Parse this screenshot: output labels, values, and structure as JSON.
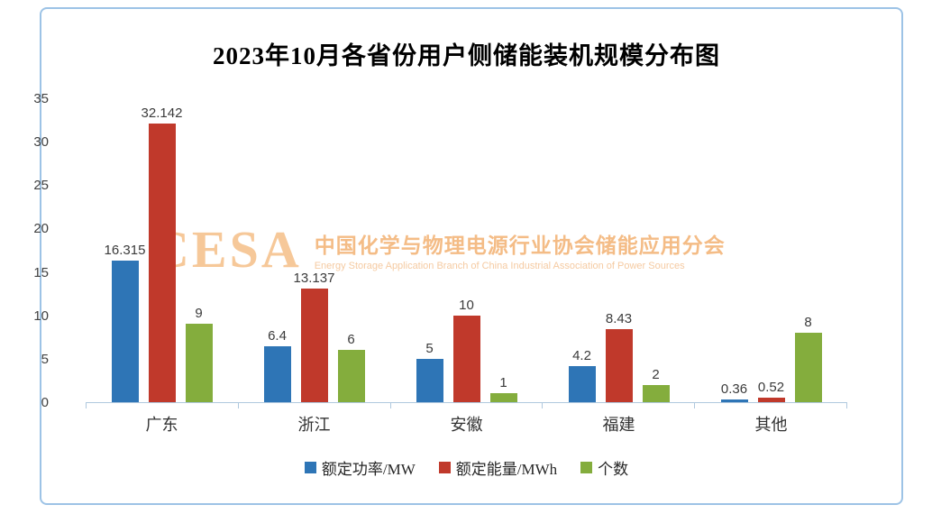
{
  "frame": {
    "border_color": "#9DC3E6"
  },
  "axis": {
    "line_color": "#AFC8DE",
    "tick_label_color": "#404040"
  },
  "watermark": {
    "logo_text": "CESA",
    "line1": "中国化学与物理电源行业协会储能应用分会",
    "line2": "Energy Storage Application Branch of China Industrial Association of Power Sources",
    "logo_color": "#F6C594",
    "text_color": "#F3B880"
  },
  "chart_data": {
    "type": "bar",
    "title": "2023年10月各省份用户侧储能装机规模分布图",
    "categories": [
      "广东",
      "浙江",
      "安徽",
      "福建",
      "其他"
    ],
    "series": [
      {
        "name": "额定功率/MW",
        "color": "#2E75B6",
        "values": [
          16.315,
          6.4,
          5,
          4.2,
          0.36
        ]
      },
      {
        "name": "额定能量/MWh",
        "color": "#C0392B",
        "values": [
          32.142,
          13.137,
          10,
          8.43,
          0.52
        ]
      },
      {
        "name": "个数",
        "color": "#84AD3D",
        "values": [
          9,
          6,
          1,
          2,
          8
        ]
      }
    ],
    "ylim": [
      0,
      35
    ],
    "yticks": [
      0,
      5,
      10,
      15,
      20,
      25,
      30,
      35
    ],
    "grid": false,
    "data_labels": true,
    "legend_position": "bottom"
  }
}
